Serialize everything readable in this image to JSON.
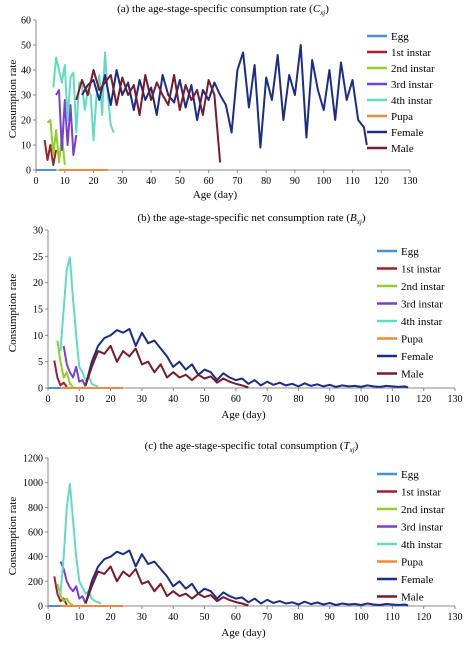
{
  "colors": {
    "Egg": "#4a90d9",
    "1st instar": "#a0202e",
    "2nd instar": "#8fd12a",
    "3rd instar": "#7a3fd0",
    "4th instar": "#60dcc0",
    "Pupa": "#f08a3a",
    "Female": "#1a2d8c",
    "Male": "#7a1a2a"
  },
  "chart_data": [
    {
      "type": "line",
      "title_text": "(a) the age-stage-specific consumption rate (",
      "title_symbol": "C",
      "title_subscript": "xj",
      "title_suffix": ")",
      "xlabel": "Age (day)",
      "ylabel": "Consumption rate",
      "xlim": [
        0,
        130
      ],
      "ylim": [
        0,
        60
      ],
      "xticks": [
        0,
        10,
        20,
        30,
        40,
        50,
        60,
        70,
        80,
        90,
        100,
        110,
        120,
        130
      ],
      "yticks": [
        0,
        10,
        20,
        30,
        40,
        50,
        60
      ],
      "legend": "right",
      "series": [
        {
          "name": "Egg",
          "x": [
            0,
            1,
            2,
            3,
            4,
            5,
            6,
            7
          ],
          "y": [
            0,
            0,
            0,
            0,
            0,
            0,
            0,
            0
          ]
        },
        {
          "name": "1st instar",
          "x": [
            3,
            4,
            5,
            6,
            7
          ],
          "y": [
            12,
            4,
            10,
            2,
            8
          ]
        },
        {
          "name": "2nd instar",
          "x": [
            4,
            5,
            6,
            7,
            8,
            9,
            10
          ],
          "y": [
            19,
            20,
            6,
            16,
            3,
            14,
            2
          ]
        },
        {
          "name": "3rd instar",
          "x": [
            7,
            8,
            9,
            10,
            11,
            12,
            13,
            14
          ],
          "y": [
            30,
            32,
            8,
            28,
            10,
            26,
            6,
            14
          ]
        },
        {
          "name": "4th instar",
          "x": [
            6,
            7,
            8,
            9,
            10,
            11,
            12,
            13,
            14,
            15,
            16,
            17,
            18,
            19,
            20,
            21,
            22,
            23,
            24,
            25,
            26,
            27
          ],
          "y": [
            33,
            45,
            40,
            35,
            42,
            20,
            37,
            39,
            15,
            35,
            34,
            24,
            32,
            30,
            12,
            29,
            38,
            22,
            47,
            30,
            18,
            15
          ]
        },
        {
          "name": "Pupa",
          "x": [
            8,
            10,
            12,
            14,
            16,
            18,
            20,
            22,
            24,
            25
          ],
          "y": [
            0,
            0,
            0,
            0,
            0,
            0,
            0,
            0,
            0,
            0
          ]
        },
        {
          "name": "Female",
          "x": [
            16,
            18,
            20,
            22,
            24,
            26,
            28,
            30,
            32,
            34,
            36,
            38,
            40,
            42,
            44,
            46,
            48,
            50,
            52,
            54,
            56,
            58,
            60,
            62,
            64,
            66,
            68,
            70,
            72,
            74,
            76,
            78,
            80,
            82,
            84,
            86,
            88,
            90,
            92,
            94,
            96,
            98,
            100,
            102,
            104,
            106,
            108,
            110,
            112,
            114,
            115
          ],
          "y": [
            30,
            34,
            36,
            28,
            38,
            26,
            40,
            30,
            35,
            24,
            36,
            28,
            33,
            22,
            38,
            30,
            27,
            36,
            25,
            34,
            20,
            32,
            28,
            35,
            30,
            26,
            15,
            40,
            47,
            25,
            42,
            9,
            37,
            28,
            46,
            20,
            38,
            30,
            50,
            13,
            44,
            32,
            24,
            40,
            20,
            43,
            28,
            36,
            20,
            17,
            10
          ]
        },
        {
          "name": "Male",
          "x": [
            14,
            16,
            18,
            20,
            22,
            24,
            26,
            28,
            30,
            32,
            34,
            36,
            38,
            40,
            42,
            44,
            46,
            48,
            50,
            52,
            54,
            56,
            58,
            60,
            62,
            64
          ],
          "y": [
            28,
            36,
            30,
            40,
            32,
            35,
            38,
            26,
            37,
            30,
            34,
            22,
            38,
            28,
            35,
            30,
            26,
            38,
            24,
            34,
            28,
            32,
            22,
            36,
            30,
            3
          ]
        }
      ]
    },
    {
      "type": "line",
      "title_text": "(b) the age-stage-specific net consumption rate (",
      "title_symbol": "B",
      "title_subscript": "xj",
      "title_suffix": ")",
      "xlabel": "Age (day)",
      "ylabel": "Consumption rate",
      "xlim": [
        0,
        130
      ],
      "ylim": [
        0,
        30
      ],
      "xticks": [
        0,
        10,
        20,
        30,
        40,
        50,
        60,
        70,
        80,
        90,
        100,
        110,
        120,
        130
      ],
      "yticks": [
        0,
        5,
        10,
        15,
        20,
        25,
        30
      ],
      "legend": "right",
      "series": [
        {
          "name": "Egg",
          "x": [
            0,
            1,
            2,
            3,
            4,
            5
          ],
          "y": [
            0,
            0,
            0,
            0,
            0,
            0
          ]
        },
        {
          "name": "1st instar",
          "x": [
            2,
            3,
            4,
            5,
            6
          ],
          "y": [
            5.2,
            2.0,
            0.5,
            1.0,
            0.2
          ]
        },
        {
          "name": "2nd instar",
          "x": [
            3,
            4,
            5,
            6,
            7,
            8
          ],
          "y": [
            9.0,
            5.0,
            2.0,
            3.0,
            0.8,
            0.2
          ]
        },
        {
          "name": "3rd instar",
          "x": [
            5,
            6,
            7,
            8,
            9,
            10,
            11,
            12
          ],
          "y": [
            8.0,
            4.5,
            3.0,
            2.0,
            4.0,
            1.2,
            1.5,
            0.3
          ]
        },
        {
          "name": "4th instar",
          "x": [
            4,
            5,
            6,
            7,
            8,
            9,
            10,
            11,
            12,
            13,
            14,
            15,
            16
          ],
          "y": [
            7.0,
            15.0,
            22.5,
            24.8,
            17.0,
            10.0,
            4.0,
            3.0,
            1.5,
            2.2,
            0.8,
            0.5,
            0.3
          ]
        },
        {
          "name": "Pupa",
          "x": [
            4,
            8,
            12,
            16,
            20,
            24
          ],
          "y": [
            0,
            0,
            0,
            0,
            0,
            0
          ]
        },
        {
          "name": "Female",
          "x": [
            12,
            14,
            16,
            18,
            20,
            22,
            24,
            26,
            28,
            30,
            32,
            34,
            36,
            38,
            40,
            42,
            44,
            46,
            48,
            50,
            52,
            54,
            56,
            58,
            60,
            62,
            64,
            66,
            68,
            70,
            72,
            74,
            76,
            78,
            80,
            82,
            84,
            86,
            88,
            90,
            92,
            94,
            96,
            98,
            100,
            102,
            104,
            106,
            108,
            110,
            112,
            114,
            115
          ],
          "y": [
            0.5,
            5.0,
            8.0,
            9.5,
            10.0,
            11.0,
            10.5,
            11.2,
            8.0,
            10.5,
            8.5,
            9.0,
            7.5,
            6.0,
            4.0,
            5.0,
            3.5,
            4.5,
            2.5,
            3.5,
            3.0,
            1.5,
            2.8,
            2.0,
            1.5,
            1.8,
            0.8,
            1.5,
            0.5,
            1.2,
            0.6,
            1.0,
            0.5,
            0.8,
            0.3,
            0.9,
            0.4,
            0.7,
            0.3,
            0.6,
            0.2,
            0.5,
            0.3,
            0.4,
            0.2,
            0.5,
            0.3,
            0.2,
            0.4,
            0.3,
            0.2,
            0.3,
            0.1
          ]
        },
        {
          "name": "Male",
          "x": [
            12,
            14,
            16,
            18,
            20,
            22,
            24,
            26,
            28,
            30,
            32,
            34,
            36,
            38,
            40,
            42,
            44,
            46,
            48,
            50,
            52,
            54,
            56,
            58,
            60,
            62,
            64
          ],
          "y": [
            0.5,
            4.0,
            7.0,
            6.5,
            8.0,
            5.0,
            7.0,
            6.0,
            7.5,
            4.5,
            5.0,
            3.0,
            4.5,
            2.0,
            3.0,
            2.0,
            2.5,
            1.5,
            2.5,
            1.8,
            2.2,
            1.0,
            1.8,
            1.2,
            0.8,
            0.5,
            0.1
          ]
        }
      ]
    },
    {
      "type": "line",
      "title_text": "(c) the age-stage-specific total consumption (",
      "title_symbol": "T",
      "title_subscript": "xj",
      "title_suffix": ")",
      "xlabel": "Age (day)",
      "ylabel": "Consumption rate",
      "xlim": [
        0,
        130
      ],
      "ylim": [
        0,
        1200
      ],
      "xticks": [
        0,
        10,
        20,
        30,
        40,
        50,
        60,
        70,
        80,
        90,
        100,
        110,
        120,
        130
      ],
      "yticks": [
        0,
        200,
        400,
        600,
        800,
        1000,
        1200
      ],
      "legend": "right",
      "series": [
        {
          "name": "Egg",
          "x": [
            0,
            1,
            2,
            3,
            4,
            5
          ],
          "y": [
            0,
            0,
            0,
            0,
            0,
            0
          ]
        },
        {
          "name": "1st instar",
          "x": [
            2,
            3,
            4,
            5,
            6
          ],
          "y": [
            240,
            100,
            40,
            60,
            10
          ]
        },
        {
          "name": "2nd instar",
          "x": [
            3,
            4,
            5,
            6,
            7,
            8
          ],
          "y": [
            180,
            90,
            40,
            60,
            20,
            5
          ]
        },
        {
          "name": "3rd instar",
          "x": [
            4,
            5,
            6,
            7,
            8,
            9,
            10,
            11,
            12
          ],
          "y": [
            360,
            300,
            200,
            150,
            120,
            160,
            60,
            80,
            20
          ]
        },
        {
          "name": "4th instar",
          "x": [
            4,
            5,
            6,
            7,
            8,
            9,
            10,
            11,
            12,
            13,
            14,
            15,
            16,
            17
          ],
          "y": [
            100,
            400,
            800,
            990,
            700,
            400,
            200,
            150,
            100,
            120,
            60,
            40,
            30,
            20
          ]
        },
        {
          "name": "Pupa",
          "x": [
            4,
            8,
            12,
            16,
            20,
            24
          ],
          "y": [
            0,
            0,
            0,
            0,
            0,
            0
          ]
        },
        {
          "name": "Female",
          "x": [
            12,
            14,
            16,
            18,
            20,
            22,
            24,
            26,
            28,
            30,
            32,
            34,
            36,
            38,
            40,
            42,
            44,
            46,
            48,
            50,
            52,
            54,
            56,
            58,
            60,
            62,
            64,
            66,
            68,
            70,
            72,
            74,
            76,
            78,
            80,
            82,
            84,
            86,
            88,
            90,
            92,
            94,
            96,
            98,
            100,
            102,
            104,
            106,
            108,
            110,
            112,
            114,
            115
          ],
          "y": [
            20,
            200,
            320,
            380,
            400,
            440,
            420,
            450,
            320,
            420,
            340,
            360,
            300,
            240,
            160,
            200,
            140,
            180,
            100,
            140,
            120,
            60,
            110,
            80,
            60,
            70,
            30,
            60,
            20,
            50,
            25,
            40,
            20,
            30,
            12,
            35,
            15,
            28,
            12,
            24,
            8,
            20,
            12,
            16,
            8,
            20,
            12,
            8,
            16,
            12,
            8,
            12,
            4
          ]
        },
        {
          "name": "Male",
          "x": [
            12,
            14,
            16,
            18,
            20,
            22,
            24,
            26,
            28,
            30,
            32,
            34,
            36,
            38,
            40,
            42,
            44,
            46,
            48,
            50,
            52,
            54,
            56,
            58,
            60,
            62,
            64
          ],
          "y": [
            20,
            160,
            280,
            260,
            320,
            200,
            280,
            240,
            300,
            180,
            200,
            120,
            180,
            80,
            120,
            80,
            100,
            60,
            100,
            72,
            88,
            40,
            72,
            48,
            32,
            20,
            4
          ]
        }
      ]
    }
  ]
}
